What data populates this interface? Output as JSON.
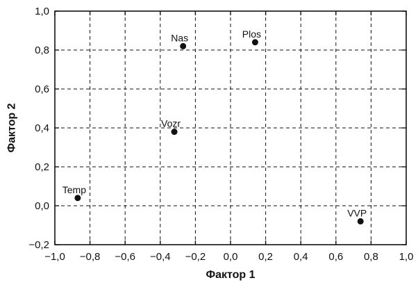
{
  "chart_data": {
    "type": "scatter",
    "xlabel": "Фактор 1",
    "ylabel": "Фактор 2",
    "xlim": [
      -1.0,
      1.0
    ],
    "ylim": [
      -0.2,
      1.0
    ],
    "x_ticks": [
      "−1,0",
      "−0,8",
      "−0,6",
      "−0,4",
      "−0,2",
      "0,0",
      "0,2",
      "0,4",
      "0,6",
      "0,8",
      "1,0"
    ],
    "y_ticks": [
      "−0,2",
      "0,0",
      "0,2",
      "0,4",
      "0,6",
      "0,8",
      "1,0"
    ],
    "grid": true,
    "points": [
      {
        "label": "Nas",
        "x": -0.27,
        "y": 0.82
      },
      {
        "label": "Plos",
        "x": 0.14,
        "y": 0.84
      },
      {
        "label": "Vozr",
        "x": -0.32,
        "y": 0.38
      },
      {
        "label": "Temp",
        "x": -0.87,
        "y": 0.04
      },
      {
        "label": "VVP",
        "x": 0.74,
        "y": -0.08
      }
    ],
    "colors": {
      "marker": "#111111",
      "grid": "#111111",
      "frame": "#111111"
    }
  }
}
